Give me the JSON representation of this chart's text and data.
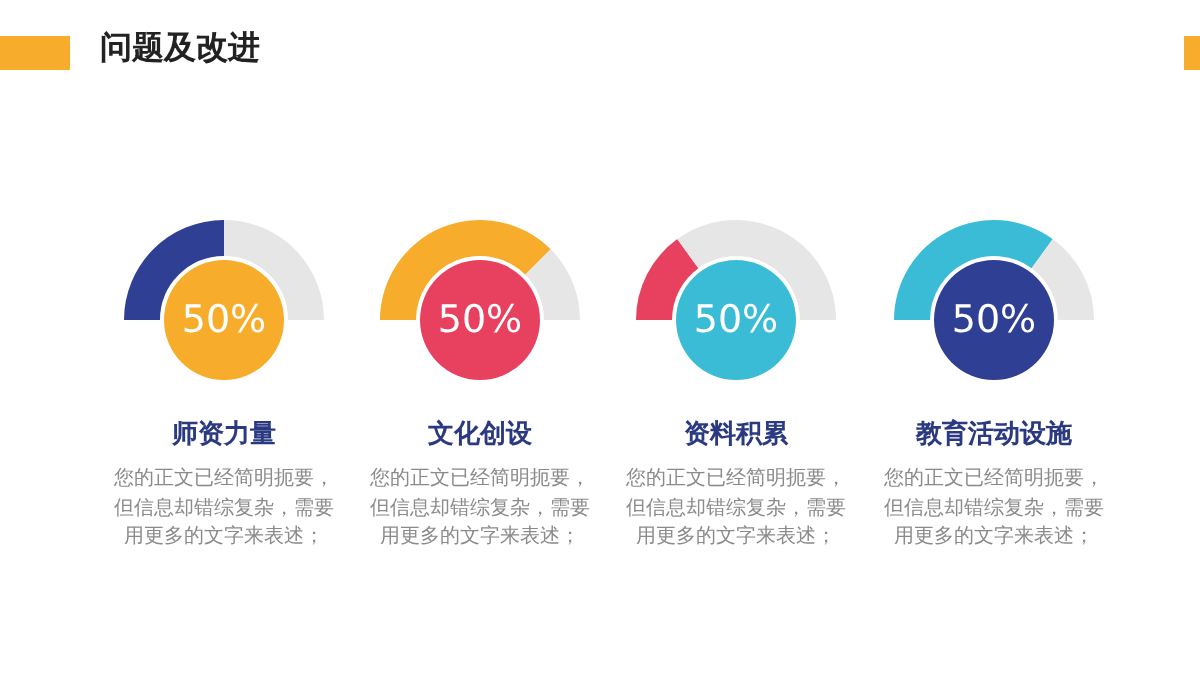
{
  "chart_data": [
    {
      "type": "other",
      "title": "问题及改进"
    },
    {
      "type": "donut",
      "title": "师资力量",
      "categories": [
        null,
        null
      ],
      "values": [
        50,
        50
      ],
      "colors": [
        "#2e3f94",
        "#e6e6e6"
      ],
      "annotations": [
        "50%",
        "您的正文已经简明扼要，但信息却错综复杂，需要用更多的文字来表述；"
      ]
    },
    {
      "type": "donut",
      "title": "文化创设",
      "categories": [
        null,
        null
      ],
      "values": [
        75,
        25
      ],
      "colors": [
        "#f7ad2b",
        "#e6e6e6"
      ],
      "annotations": [
        "50%",
        "您的正文已经简明扼要，但信息却错综复杂，需要用更多的文字来表述；"
      ]
    },
    {
      "type": "donut",
      "title": "资料积累",
      "categories": [
        null,
        null
      ],
      "values": [
        30,
        70
      ],
      "colors": [
        "#e8415f",
        "#e6e6e6"
      ],
      "annotations": [
        "50%",
        "您的正文已经简明扼要，但信息却错综复杂，需要用更多的文字来表述；"
      ]
    },
    {
      "type": "donut",
      "title": "教育活动设施",
      "categories": [
        null,
        null
      ],
      "values": [
        70,
        30
      ],
      "colors": [
        "#3bbcd6",
        "#e6e6e6"
      ],
      "annotations": [
        "50%",
        "您的正文已经简明扼要，但信息却错综复杂，需要用更多的文字来表述；"
      ]
    }
  ]
}
